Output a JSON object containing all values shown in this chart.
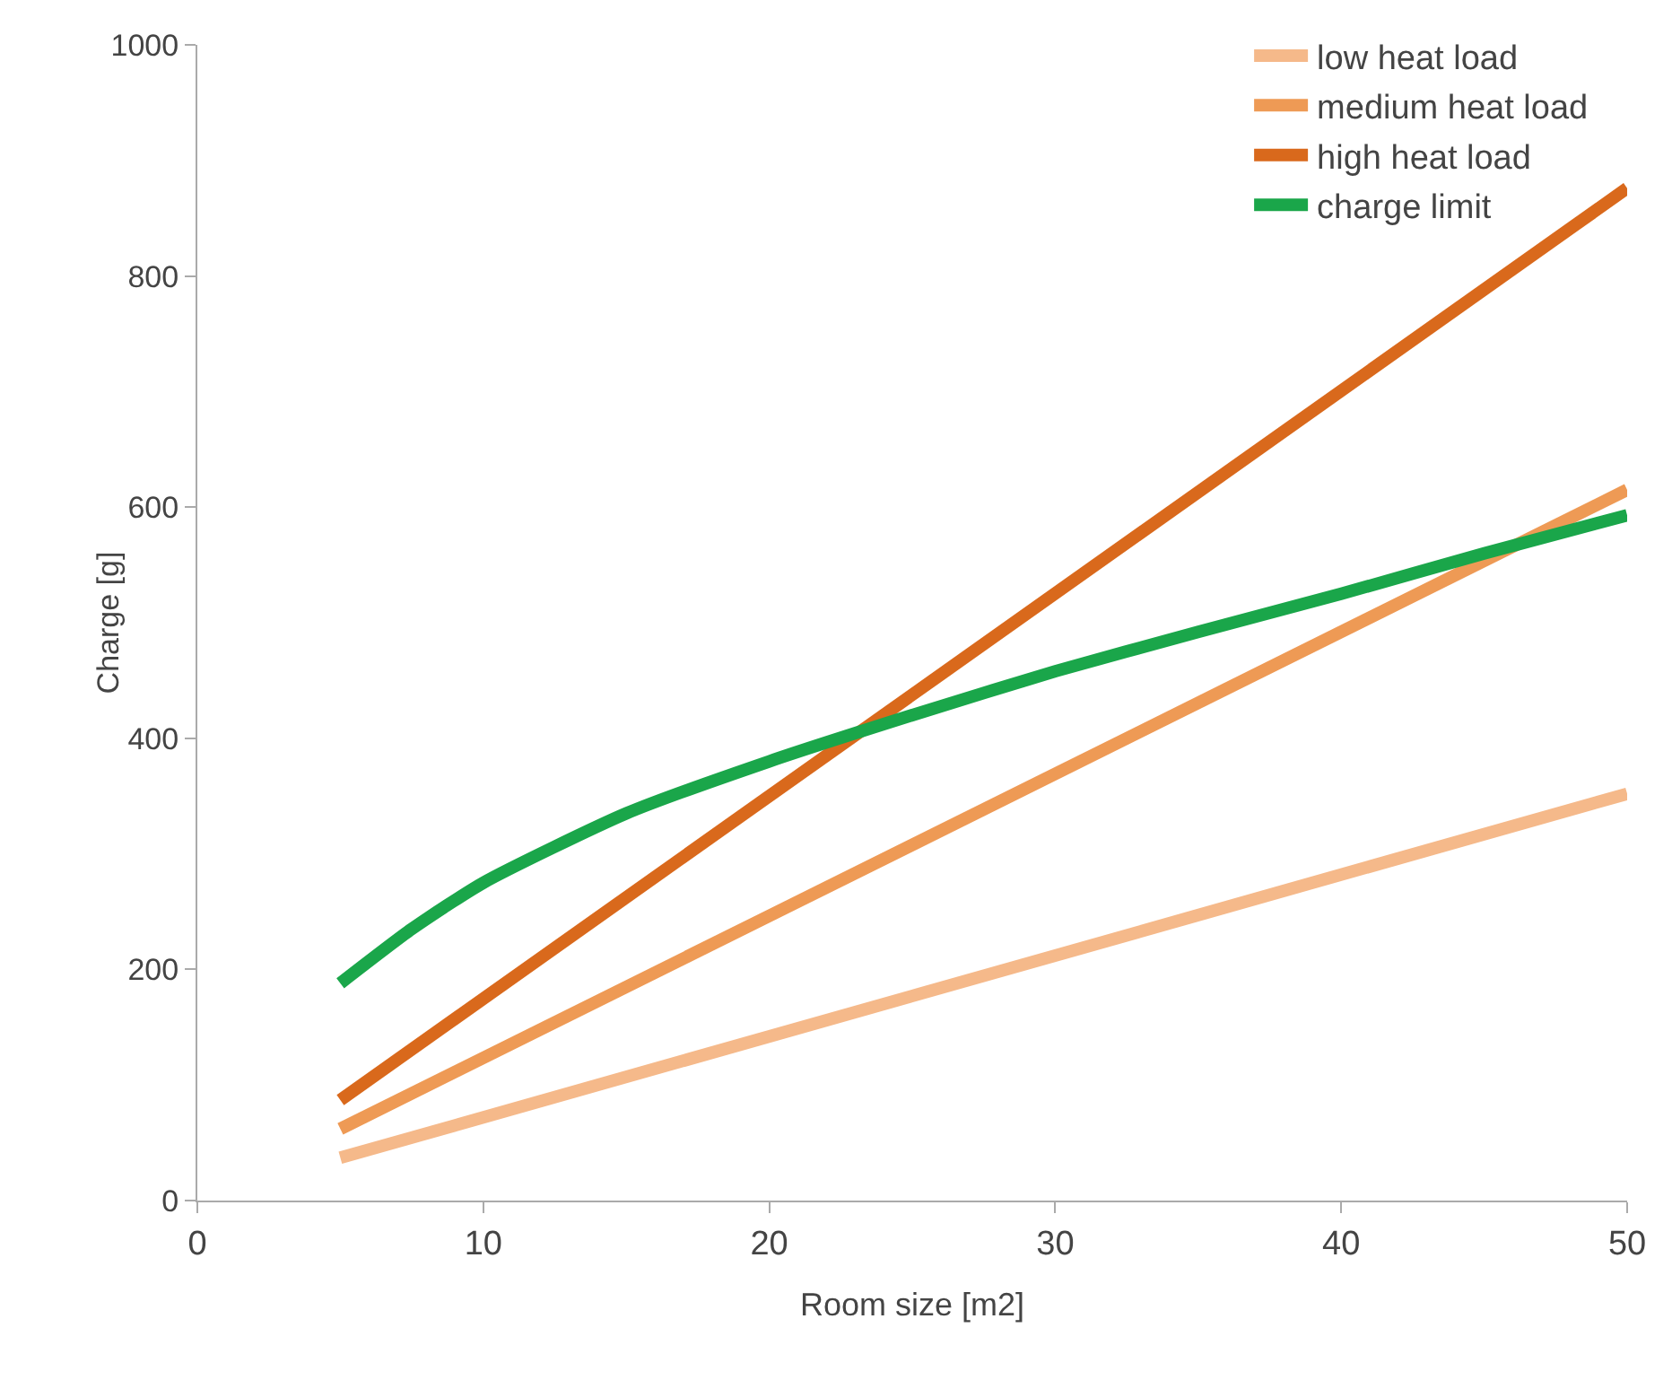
{
  "chart_data": {
    "type": "line",
    "xlabel": "Room size [m2]",
    "ylabel": "Charge [g]",
    "xlim": [
      0,
      50
    ],
    "xticks": [
      0,
      10,
      20,
      30,
      40,
      50
    ],
    "ylim": [
      0,
      1000
    ],
    "yticks": [
      0,
      200,
      400,
      600,
      800,
      1000
    ],
    "grid": false,
    "legend": "top right",
    "marker": "none",
    "line_style": "solid",
    "series": [
      {
        "name": "low heat load",
        "color": "#f5b98a",
        "x": [
          5,
          50
        ],
        "values": [
          37,
          352
        ]
      },
      {
        "name": "medium heat load",
        "color": "#ee9a55",
        "x": [
          5,
          50
        ],
        "values": [
          62,
          615
        ]
      },
      {
        "name": "high heat load",
        "color": "#d9691c",
        "x": [
          5,
          50
        ],
        "values": [
          87,
          876
        ]
      },
      {
        "name": "charge limit",
        "color": "#1aa64a",
        "x": [
          5,
          7.5,
          10,
          15,
          20,
          25,
          30,
          35,
          40,
          45,
          50
        ],
        "values": [
          188,
          235,
          275,
          335,
          380,
          420,
          458,
          492,
          525,
          560,
          593
        ]
      }
    ]
  }
}
